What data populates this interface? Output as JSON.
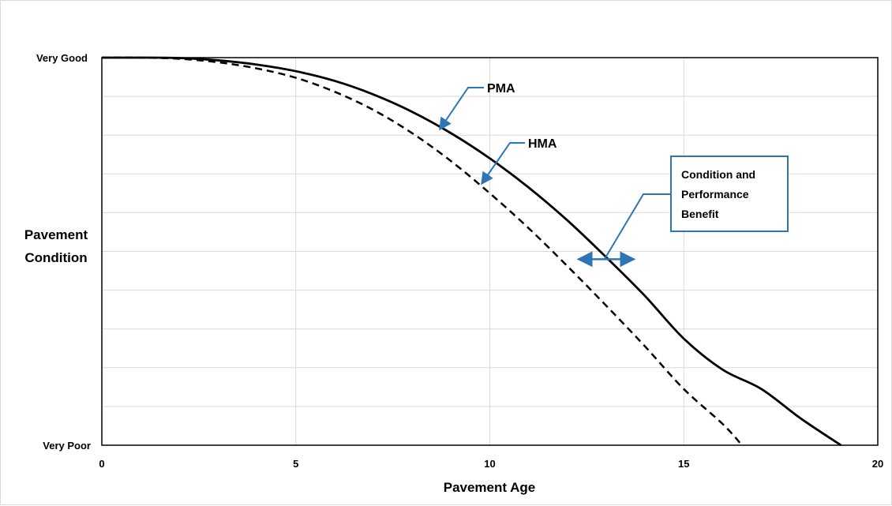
{
  "chart_data": {
    "type": "line",
    "xlabel": "Pavement Age",
    "ylabel": [
      "Pavement",
      "Condition"
    ],
    "xlim": [
      0,
      20
    ],
    "x_ticks": [
      0,
      5,
      10,
      15,
      20
    ],
    "ylim": [
      0,
      10
    ],
    "y_tick_labels": {
      "top": "Very Good",
      "bottom": "Very Poor"
    },
    "grid": true,
    "series": [
      {
        "name": "PMA",
        "style": "solid",
        "color": "#000000",
        "x": [
          0,
          1,
          2,
          3,
          4,
          5,
          6,
          7,
          8,
          9,
          10,
          11,
          12,
          13,
          14,
          15,
          16,
          17,
          18,
          19.05
        ],
        "y": [
          10.0,
          10.0,
          9.99,
          9.93,
          9.82,
          9.65,
          9.4,
          9.05,
          8.6,
          8.05,
          7.4,
          6.65,
          5.8,
          4.85,
          3.85,
          2.75,
          1.95,
          1.45,
          0.7,
          0.0
        ]
      },
      {
        "name": "HMA",
        "style": "dashed",
        "color": "#000000",
        "x": [
          0,
          1,
          2,
          3,
          4,
          5,
          6,
          7,
          8,
          9,
          10,
          11,
          12,
          13,
          14,
          15,
          16,
          16.5
        ],
        "y": [
          10.0,
          10.0,
          9.97,
          9.88,
          9.72,
          9.48,
          9.12,
          8.65,
          8.05,
          7.33,
          6.5,
          5.6,
          4.62,
          3.6,
          2.55,
          1.45,
          0.55,
          0.0
        ]
      }
    ],
    "annotations": {
      "pma_label": "PMA",
      "hma_label": "HMA",
      "benefit_box": [
        "Condition and",
        "Performance",
        "Benefit"
      ],
      "benefit_arrow_x": [
        12.2,
        13.8
      ],
      "benefit_arrow_y": 4.8
    },
    "annotation_color": "#2E75B6"
  }
}
